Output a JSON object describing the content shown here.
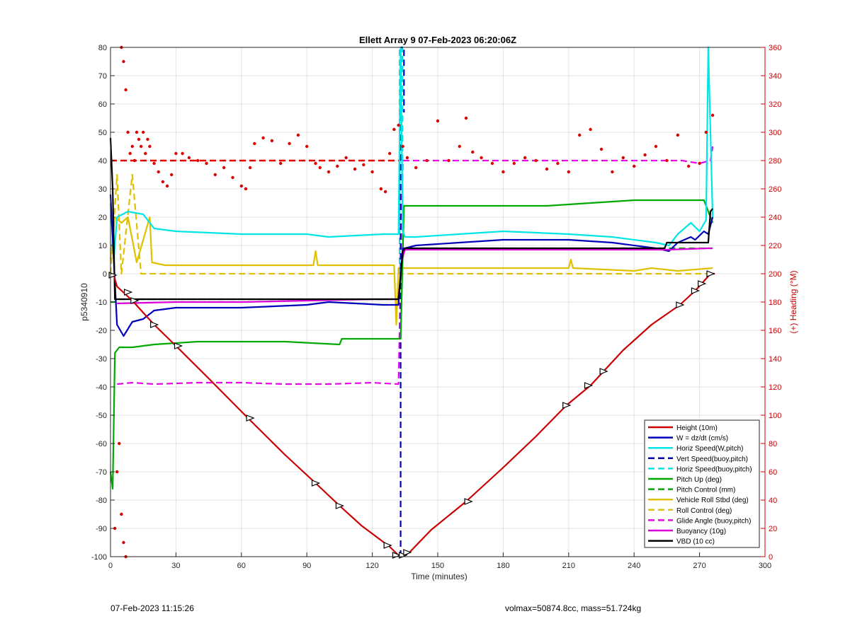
{
  "chart_data": {
    "type": "line",
    "title": "Ellett Array 9 07-Feb-2023 06:20:06Z",
    "xlabel": "Time (minutes)",
    "ylabel": "p5340910",
    "y2label": "(+) Heading (°M)",
    "xlim": [
      0,
      300
    ],
    "ylim": [
      -100,
      80
    ],
    "y2lim": [
      0,
      360
    ],
    "xticks": [
      "0",
      "30",
      "60",
      "90",
      "120",
      "150",
      "180",
      "210",
      "240",
      "270",
      "300"
    ],
    "yticks": [
      "-100",
      "-90",
      "-80",
      "-70",
      "-60",
      "-50",
      "-40",
      "-30",
      "-20",
      "-10",
      "0",
      "10",
      "20",
      "30",
      "40",
      "50",
      "60",
      "70",
      "80"
    ],
    "y2ticks": [
      "0",
      "20",
      "40",
      "60",
      "80",
      "100",
      "120",
      "140",
      "160",
      "180",
      "200",
      "220",
      "240",
      "260",
      "280",
      "300",
      "320",
      "340",
      "360"
    ],
    "grid": true,
    "legend_position": "bottom-right",
    "series": [
      {
        "name": "Height (10m)",
        "color": "#cc0000",
        "style": "solid",
        "x": [
          0,
          1.5,
          3,
          10,
          20,
          30,
          45,
          63,
          80,
          94,
          105,
          115,
          128,
          132,
          133.5,
          135,
          137,
          147,
          163,
          180,
          195,
          209,
          220,
          226,
          235,
          248,
          261,
          268,
          271,
          275,
          277
        ],
        "y": [
          0,
          -0.5,
          -4.5,
          -9.5,
          -18,
          -25.5,
          -37,
          -51,
          -64,
          -74,
          -82,
          -89,
          -96.5,
          -99.5,
          -100,
          -99.5,
          -98.5,
          -90.5,
          -80.5,
          -68.5,
          -57.5,
          -46.5,
          -39.5,
          -34.5,
          -27,
          -18,
          -11,
          -6,
          -3.5,
          0,
          0
        ]
      },
      {
        "name": "W = dz/dt (cm/s)",
        "color": "#0000bb",
        "style": "solid",
        "x": [
          0,
          1.5,
          3,
          6,
          10,
          15,
          20,
          30,
          60,
          90,
          100,
          125,
          132,
          133.5,
          134,
          135,
          140,
          180,
          210,
          230,
          250,
          256,
          260,
          266,
          268,
          272,
          274,
          276
        ],
        "y": [
          28,
          5,
          -18,
          -22,
          -17,
          -16,
          -13,
          -12,
          -12,
          -11,
          -10,
          -11,
          -11,
          5,
          9,
          9,
          10,
          12,
          12,
          11,
          9,
          8,
          11,
          13,
          12,
          15,
          14,
          20
        ]
      },
      {
        "name": "Horiz Speed(W,pitch)",
        "color": "#00e5e5",
        "style": "solid",
        "x": [
          0,
          1.5,
          3,
          8,
          15,
          20,
          30,
          60,
          90,
          100,
          125,
          132,
          133,
          134,
          135,
          140,
          180,
          210,
          230,
          250,
          256,
          260,
          266,
          270,
          273,
          274,
          276
        ],
        "y": [
          25,
          5,
          20,
          22,
          21,
          16,
          15,
          14,
          14,
          13,
          14,
          14,
          80,
          15,
          13,
          13,
          15,
          14,
          13,
          11,
          10,
          14,
          18,
          15,
          19,
          80,
          20
        ]
      },
      {
        "name": "Vert Speed(buoy,pitch)",
        "color": "#0000bb",
        "style": "dashed",
        "x": [
          133,
          133,
          134.5,
          134.5
        ],
        "y": [
          -100,
          80,
          80,
          57
        ]
      },
      {
        "name": "Horiz Speed(buoy,pitch)",
        "color": "#00e5e5",
        "style": "dashed",
        "x": [
          132.5,
          132.5,
          133.8,
          133.8
        ],
        "y": [
          0,
          80,
          80,
          0
        ]
      },
      {
        "name": "Pitch Up (deg)",
        "color": "#00aa00",
        "style": "solid",
        "x": [
          0,
          1,
          2,
          4,
          10,
          20,
          40,
          60,
          80,
          105,
          106,
          130,
          133,
          134.5,
          136,
          180,
          200,
          220,
          240,
          260,
          272,
          276
        ],
        "y": [
          -70,
          -76,
          -28,
          -26,
          -26,
          -25,
          -24,
          -24,
          -24,
          -25,
          -23,
          -23,
          -23,
          24,
          24,
          24,
          24,
          25,
          26,
          26,
          26,
          18
        ]
      },
      {
        "name": "Pitch Control (mm)",
        "color": "#00aa00",
        "style": "dashed",
        "x": [
          0,
          2,
          3,
          132,
          133.5,
          135,
          276
        ],
        "y": [
          -10,
          -10,
          -9,
          -9,
          4,
          9,
          9
        ]
      },
      {
        "name": "Vehicle Roll Stbd (deg)",
        "color": "#e0c000",
        "style": "solid",
        "x": [
          0,
          2,
          5,
          8,
          12,
          18,
          19,
          25,
          60,
          93,
          94,
          95,
          130,
          131,
          132,
          134,
          136,
          200,
          210,
          211,
          212,
          240,
          248,
          260,
          276
        ],
        "y": [
          5,
          20,
          18,
          20,
          4,
          20,
          4,
          3,
          3,
          3,
          8,
          3,
          3,
          -18,
          2,
          2,
          2,
          2,
          2,
          5,
          2,
          1,
          2,
          1,
          2
        ]
      },
      {
        "name": "Roll Control (deg)",
        "color": "#e0c000",
        "style": "dashed",
        "x": [
          0,
          3,
          5,
          10,
          14,
          20,
          30,
          60,
          90,
          120,
          135,
          160,
          200,
          260,
          270,
          276
        ],
        "y": [
          0,
          35,
          0,
          35,
          0,
          0,
          0,
          0,
          0,
          0,
          0,
          0,
          0,
          0,
          0,
          0
        ]
      },
      {
        "name": "Glide Angle (buoy,pitch)",
        "color": "#ee00ee",
        "style": "dashed",
        "x": [
          3,
          10,
          20,
          40,
          60,
          80,
          100,
          120,
          132,
          134,
          140,
          180,
          220,
          250,
          262,
          270,
          275,
          276
        ],
        "y": [
          -39,
          -38.5,
          -39,
          -38.5,
          -38.5,
          -39,
          -39,
          -38.5,
          -39,
          40,
          40,
          40,
          40,
          40,
          40,
          39,
          40,
          45
        ]
      },
      {
        "name": "Buoyancy (10g)",
        "color": "#dd00dd",
        "style": "solid",
        "x": [
          3,
          30,
          60,
          90,
          120,
          132,
          133.5,
          135,
          180,
          220,
          256,
          274,
          276
        ],
        "y": [
          -10.5,
          -10,
          -10,
          -9.5,
          -9,
          -9,
          5,
          8.5,
          8.5,
          8.5,
          8.5,
          9,
          9
        ]
      },
      {
        "name": "VBD (10 cc)",
        "color": "#000000",
        "style": "solid",
        "x": [
          0,
          1,
          2,
          5,
          60,
          132,
          134,
          135,
          180,
          254,
          255,
          274,
          275,
          276
        ],
        "y": [
          48,
          30,
          -9,
          -9,
          -9,
          -9,
          8,
          9,
          9,
          9,
          11,
          11,
          22,
          23
        ]
      }
    ],
    "heading_scatter": {
      "name": "Heading",
      "color": "#dd0000",
      "x": [
        5,
        6,
        7,
        8,
        9,
        10,
        11,
        12,
        13,
        14,
        15,
        16,
        17,
        18,
        20,
        22,
        24,
        26,
        28,
        30,
        33,
        36,
        40,
        44,
        48,
        52,
        56,
        60,
        62,
        64,
        66,
        70,
        74,
        78,
        82,
        86,
        90,
        94,
        96,
        100,
        104,
        108,
        112,
        116,
        120,
        124,
        126,
        128,
        130,
        132,
        134,
        136,
        140,
        145,
        150,
        155,
        160,
        163,
        166,
        170,
        175,
        180,
        185,
        190,
        195,
        200,
        205,
        210,
        215,
        220,
        225,
        230,
        235,
        240,
        245,
        250,
        255,
        260,
        265,
        270,
        273,
        276,
        2,
        3,
        4,
        5,
        6,
        7
      ],
      "y": [
        360,
        350,
        330,
        300,
        285,
        290,
        280,
        300,
        295,
        290,
        300,
        285,
        295,
        290,
        278,
        272,
        265,
        262,
        270,
        285,
        285,
        282,
        280,
        278,
        270,
        275,
        268,
        262,
        260,
        275,
        292,
        296,
        294,
        278,
        292,
        298,
        290,
        278,
        275,
        272,
        276,
        282,
        274,
        277,
        272,
        260,
        258,
        285,
        302,
        305,
        290,
        282,
        275,
        280,
        308,
        280,
        290,
        310,
        286,
        282,
        278,
        272,
        278,
        282,
        280,
        274,
        278,
        272,
        298,
        302,
        288,
        272,
        282,
        276,
        284,
        290,
        280,
        298,
        276,
        278,
        300,
        312,
        20,
        60,
        80,
        30,
        10,
        0
      ]
    },
    "heading_reference": {
      "color": "#dd0000",
      "style": "dashed",
      "y2": 280
    },
    "markers": {
      "x": [
        1,
        8,
        11,
        20,
        31,
        64,
        94,
        105,
        127,
        131,
        134,
        136,
        164,
        209,
        219,
        226,
        261,
        268,
        271,
        275
      ],
      "y": [
        -0.5,
        -6.5,
        -9.5,
        -18,
        -25.5,
        -51,
        -74,
        -82,
        -96,
        -99.5,
        -99.5,
        -98.5,
        -80.5,
        -46.5,
        -39.5,
        -34.5,
        -11,
        -6,
        -3.5,
        0
      ]
    }
  },
  "footer": {
    "left_text": "07-Feb-2023 11:15:26",
    "right_text": "volmax=50874.8cc, mass=51.724kg"
  }
}
